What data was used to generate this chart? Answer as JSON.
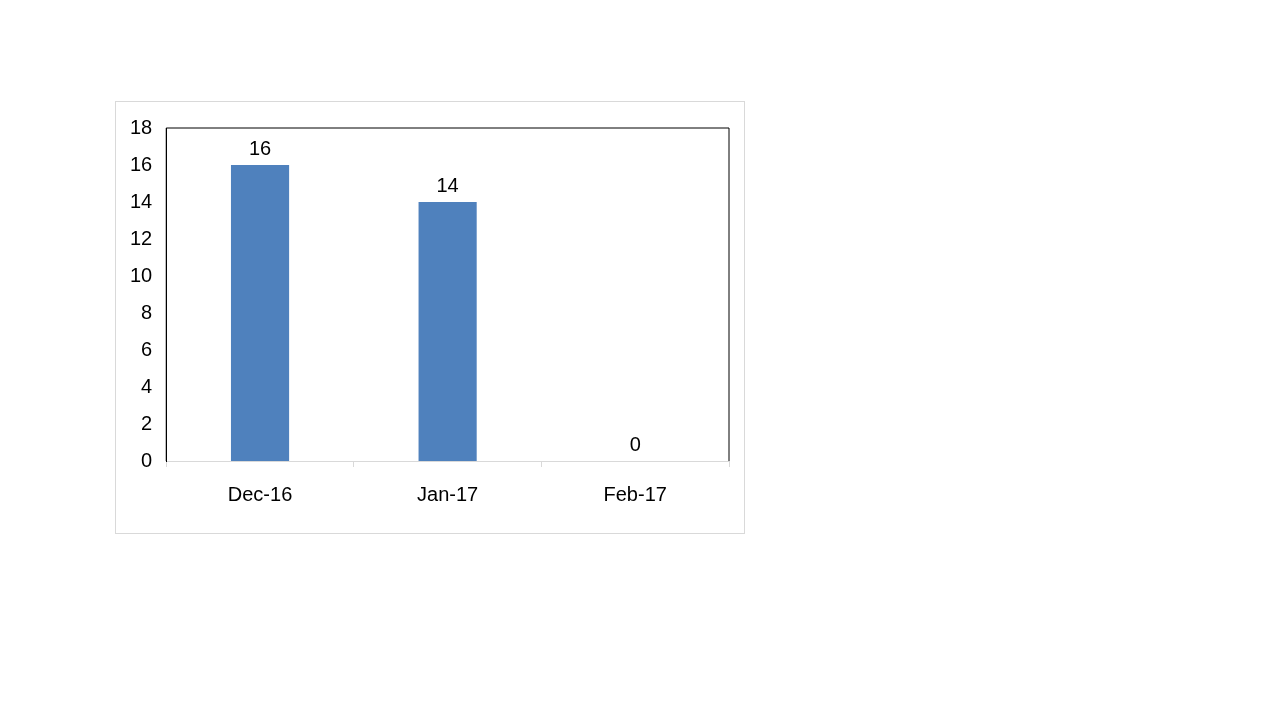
{
  "chart_data": {
    "type": "bar",
    "categories": [
      "Dec-16",
      "Jan-17",
      "Feb-17"
    ],
    "values": [
      16,
      14,
      0
    ],
    "color": "#4f81bd",
    "ylim": [
      0,
      18
    ],
    "yticks": [
      0,
      2,
      4,
      6,
      8,
      10,
      12,
      14,
      16,
      18
    ],
    "grid": false,
    "legend": false,
    "data_labels": true
  }
}
